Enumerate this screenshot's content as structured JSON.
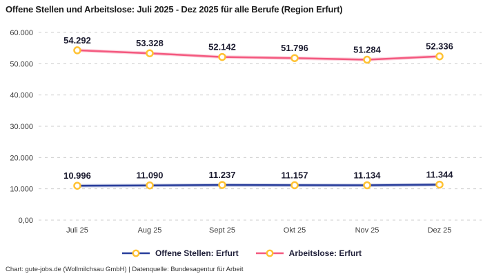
{
  "title": "Offene Stellen und Arbeitslose: Juli 2025 - Dez 2025 für alle Berufe (Region Erfurt)",
  "footer": "Chart: gute-jobs.de (Wollmilchsau GmbH) | Datenquelle: Bundesagentur für Arbeit",
  "colors": {
    "open_positions_line": "#283d9b",
    "unemployed_line": "#f4597f",
    "marker_stroke": "#ffc233",
    "marker_fill": "#ffffff",
    "gridline": "#cccccc",
    "data_label": "#1c1c30",
    "tick_label": "#3c3c3c",
    "title_text": "#1c1c1c",
    "footer_text": "#333333"
  },
  "chart_data": {
    "type": "line",
    "title": "Offene Stellen und Arbeitslose: Juli 2025 - Dez 2025 für alle Berufe (Region Erfurt)",
    "categories": [
      "Juli 25",
      "Aug 25",
      "Sept 25",
      "Okt 25",
      "Nov 25",
      "Dez 25"
    ],
    "series": [
      {
        "name": "Offene Stellen: Erfurt",
        "color": "#283d9b",
        "values": [
          10996,
          11090,
          11237,
          11157,
          11134,
          11344
        ],
        "labels": [
          "10.996",
          "11.090",
          "11.237",
          "11.157",
          "11.134",
          "11.344"
        ]
      },
      {
        "name": "Arbeitslose: Erfurt",
        "color": "#f4597f",
        "values": [
          54292,
          53328,
          52142,
          51796,
          51284,
          52336
        ],
        "labels": [
          "54.292",
          "53.328",
          "52.142",
          "51.796",
          "51.284",
          "52.336"
        ]
      }
    ],
    "y_ticks": [
      {
        "value": 0,
        "label": "0,00"
      },
      {
        "value": 10000,
        "label": "10.000"
      },
      {
        "value": 20000,
        "label": "20.000"
      },
      {
        "value": 30000,
        "label": "30.000"
      },
      {
        "value": 40000,
        "label": "40.000"
      },
      {
        "value": 50000,
        "label": "50.000"
      },
      {
        "value": 60000,
        "label": "60.000"
      }
    ],
    "ylim": [
      0,
      60000
    ],
    "xlabel": "",
    "ylabel": "",
    "grid": "horizontal-dashed",
    "legend_position": "bottom",
    "marker": "circle-yellow"
  }
}
